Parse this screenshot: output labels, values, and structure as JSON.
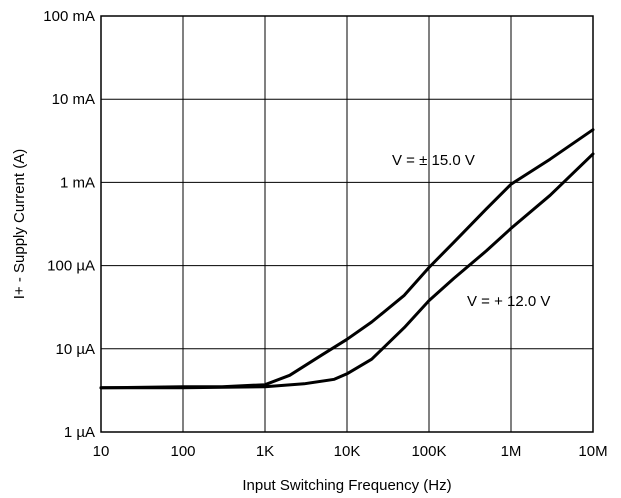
{
  "chart_data": {
    "type": "line",
    "title": "",
    "xlabel": "Input Switching Frequency (Hz)",
    "ylabel": "I+ - Supply Current (A)",
    "x_scale": "log",
    "y_scale": "log",
    "xlim": [
      10,
      10000000
    ],
    "ylim": [
      1e-06,
      0.1
    ],
    "grid": true,
    "x_ticks": [
      {
        "value": 10,
        "label": "10"
      },
      {
        "value": 100,
        "label": "100"
      },
      {
        "value": 1000,
        "label": "1K"
      },
      {
        "value": 10000,
        "label": "10K"
      },
      {
        "value": 100000,
        "label": "100K"
      },
      {
        "value": 1000000,
        "label": "1M"
      },
      {
        "value": 10000000,
        "label": "10M"
      }
    ],
    "y_ticks": [
      {
        "value": 1e-06,
        "label": "1 µA"
      },
      {
        "value": 1e-05,
        "label": "10 µA"
      },
      {
        "value": 0.0001,
        "label": "100 µA"
      },
      {
        "value": 0.001,
        "label": "1 mA"
      },
      {
        "value": 0.01,
        "label": "10 mA"
      },
      {
        "value": 0.1,
        "label": "100 mA"
      }
    ],
    "series": [
      {
        "name": "V = ± 15.0 V",
        "x": [
          10,
          100,
          300,
          1000,
          2000,
          5000,
          10000,
          20000,
          50000,
          100000,
          200000,
          500000,
          1000000,
          3000000,
          10000000
        ],
        "y": [
          3.4e-06,
          3.5e-06,
          3.5e-06,
          3.7e-06,
          4.8e-06,
          8.5e-06,
          1.3e-05,
          2.1e-05,
          4.4e-05,
          9.5e-05,
          0.00019,
          0.00048,
          0.00095,
          0.0019,
          0.0043
        ]
      },
      {
        "name": "V = + 12.0 V",
        "x": [
          10,
          100,
          1000,
          3000,
          7000,
          10000,
          20000,
          50000,
          100000,
          200000,
          500000,
          1000000,
          3000000,
          10000000
        ],
        "y": [
          3.4e-06,
          3.4e-06,
          3.5e-06,
          3.8e-06,
          4.3e-06,
          5e-06,
          7.5e-06,
          1.8e-05,
          3.8e-05,
          7e-05,
          0.00015,
          0.00028,
          0.0007,
          0.0022
        ]
      }
    ]
  }
}
